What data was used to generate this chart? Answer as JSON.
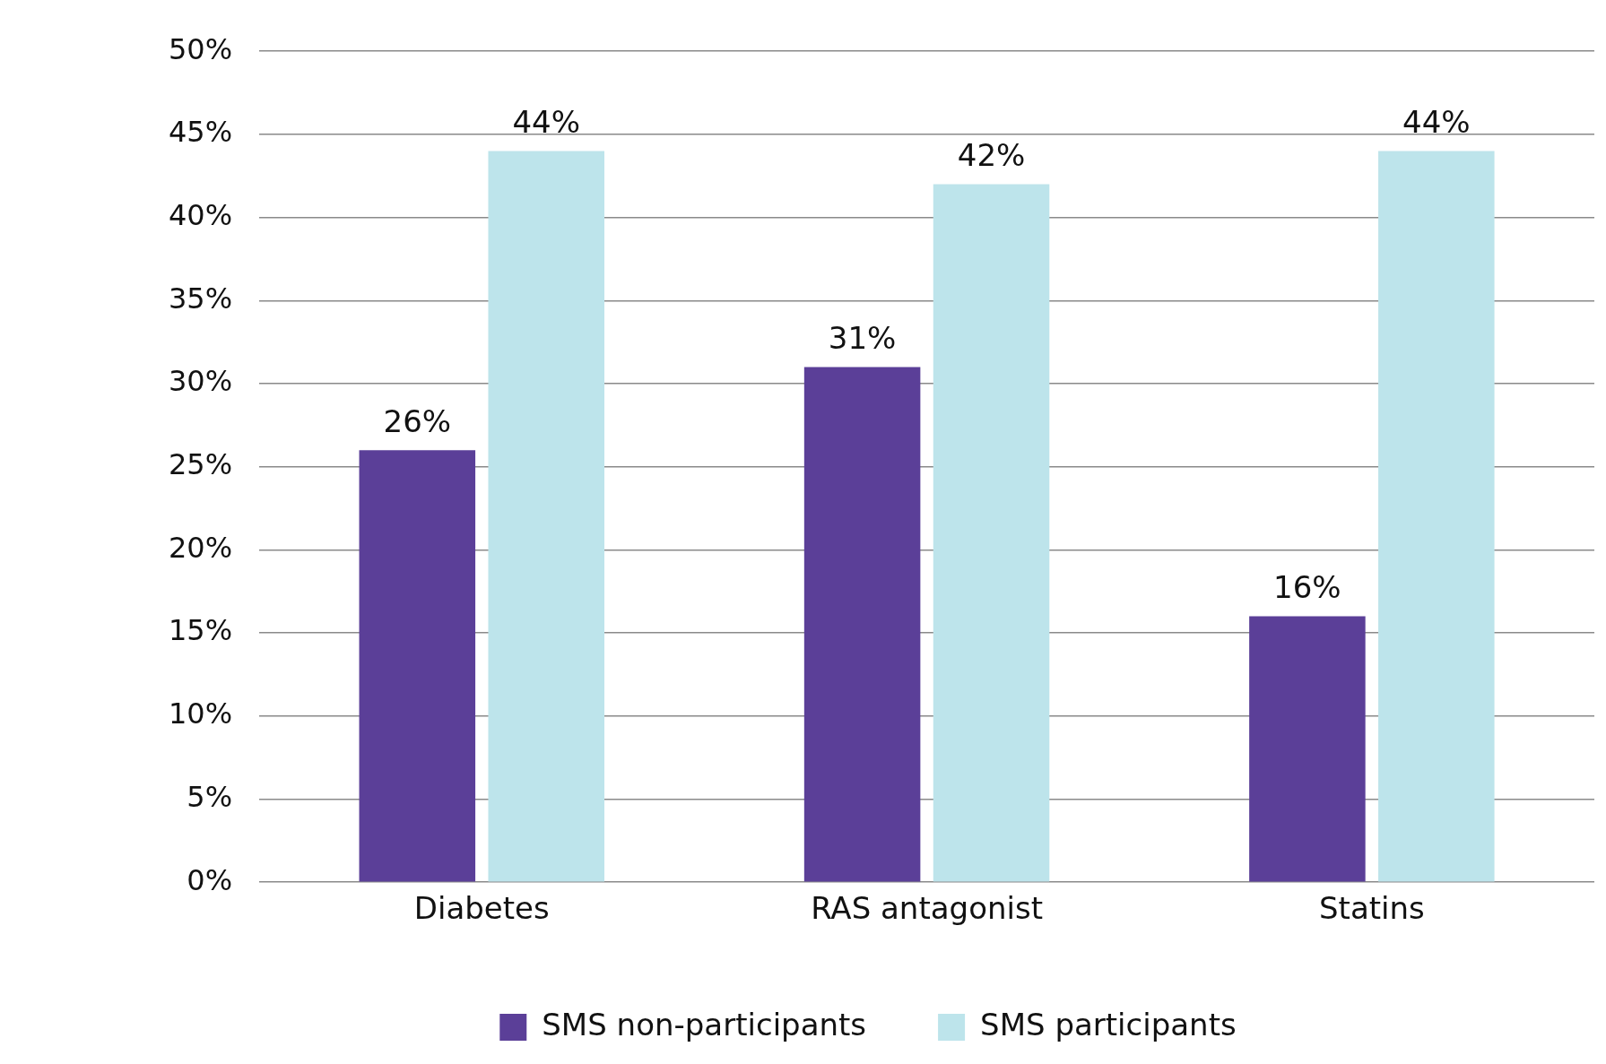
{
  "chart_data": {
    "type": "bar",
    "categories": [
      "Diabetes",
      "RAS antagonist",
      "Statins"
    ],
    "series": [
      {
        "name": "SMS non-participants",
        "color": "#5b3f98",
        "values": [
          26,
          31,
          16
        ],
        "value_labels": [
          "26%",
          "31%",
          "16%"
        ]
      },
      {
        "name": "SMS participants",
        "color": "#bde4eb",
        "values": [
          44,
          42,
          44
        ],
        "value_labels": [
          "44%",
          "42%",
          "44%"
        ]
      }
    ],
    "ylim": [
      0,
      50
    ],
    "yticks": [
      {
        "value": 0,
        "label": "0%"
      },
      {
        "value": 5,
        "label": "5%"
      },
      {
        "value": 10,
        "label": "10%"
      },
      {
        "value": 15,
        "label": "15%"
      },
      {
        "value": 20,
        "label": "20%"
      },
      {
        "value": 25,
        "label": "25%"
      },
      {
        "value": 30,
        "label": "30%"
      },
      {
        "value": 35,
        "label": "35%"
      },
      {
        "value": 40,
        "label": "40%"
      },
      {
        "value": 45,
        "label": "45%"
      },
      {
        "value": 50,
        "label": "50%"
      }
    ],
    "grid": "y",
    "legend": "bottom"
  }
}
